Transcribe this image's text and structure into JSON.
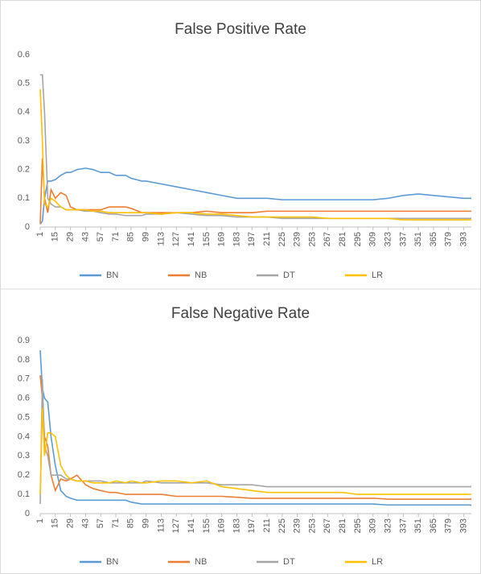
{
  "chart_data": [
    {
      "type": "line",
      "title": "False Positive Rate",
      "x": [
        1,
        3,
        5,
        8,
        11,
        15,
        20,
        25,
        29,
        35,
        43,
        50,
        57,
        65,
        71,
        80,
        85,
        95,
        99,
        113,
        127,
        141,
        155,
        169,
        183,
        197,
        211,
        225,
        239,
        253,
        267,
        281,
        295,
        309,
        323,
        337,
        351,
        365,
        379,
        393,
        400
      ],
      "xlim": [
        1,
        400
      ],
      "xticks": [
        1,
        15,
        29,
        43,
        57,
        71,
        85,
        99,
        113,
        127,
        141,
        155,
        169,
        183,
        197,
        211,
        225,
        239,
        253,
        267,
        281,
        295,
        309,
        323,
        337,
        351,
        365,
        379,
        393
      ],
      "ylim": [
        0,
        0.6
      ],
      "yticks": [
        0,
        0.1,
        0.2,
        0.3,
        0.4,
        0.5,
        0.6
      ],
      "grid": false,
      "legend": "bottom",
      "series": [
        {
          "name": "BN",
          "color": "#5b9bd5",
          "values": [
            0.01,
            0.02,
            0.1,
            0.16,
            0.16,
            0.165,
            0.18,
            0.19,
            0.19,
            0.2,
            0.205,
            0.2,
            0.19,
            0.19,
            0.18,
            0.18,
            0.17,
            0.16,
            0.16,
            0.15,
            0.14,
            0.13,
            0.12,
            0.11,
            0.1,
            0.1,
            0.1,
            0.095,
            0.095,
            0.095,
            0.095,
            0.095,
            0.095,
            0.095,
            0.1,
            0.11,
            0.115,
            0.11,
            0.105,
            0.1,
            0.1
          ]
        },
        {
          "name": "NB",
          "color": "#ed7d31",
          "values": [
            0.01,
            0.24,
            0.1,
            0.05,
            0.13,
            0.1,
            0.12,
            0.11,
            0.07,
            0.06,
            0.06,
            0.06,
            0.06,
            0.07,
            0.07,
            0.07,
            0.065,
            0.05,
            0.05,
            0.05,
            0.05,
            0.05,
            0.055,
            0.05,
            0.05,
            0.05,
            0.055,
            0.055,
            0.055,
            0.055,
            0.055,
            0.055,
            0.055,
            0.055,
            0.055,
            0.055,
            0.055,
            0.055,
            0.055,
            0.055,
            0.055
          ]
        },
        {
          "name": "DT",
          "color": "#a5a5a5",
          "values": [
            0.53,
            0.53,
            0.4,
            0.1,
            0.08,
            0.07,
            0.07,
            0.06,
            0.06,
            0.06,
            0.055,
            0.055,
            0.05,
            0.045,
            0.045,
            0.04,
            0.04,
            0.04,
            0.045,
            0.045,
            0.05,
            0.045,
            0.04,
            0.04,
            0.035,
            0.035,
            0.035,
            0.03,
            0.03,
            0.03,
            0.03,
            0.03,
            0.03,
            0.03,
            0.03,
            0.03,
            0.03,
            0.03,
            0.03,
            0.03,
            0.03
          ]
        },
        {
          "name": "LR",
          "color": "#ffc000",
          "values": [
            0.48,
            0.3,
            0.08,
            0.07,
            0.1,
            0.09,
            0.07,
            0.06,
            0.06,
            0.06,
            0.06,
            0.055,
            0.055,
            0.05,
            0.05,
            0.05,
            0.05,
            0.05,
            0.05,
            0.045,
            0.05,
            0.05,
            0.045,
            0.045,
            0.04,
            0.035,
            0.035,
            0.035,
            0.035,
            0.035,
            0.03,
            0.03,
            0.03,
            0.03,
            0.03,
            0.025,
            0.025,
            0.025,
            0.025,
            0.025,
            0.025
          ]
        }
      ]
    },
    {
      "type": "line",
      "title": "False Negative Rate",
      "x": [
        1,
        3,
        5,
        8,
        11,
        15,
        20,
        25,
        29,
        35,
        43,
        50,
        57,
        65,
        71,
        80,
        85,
        95,
        99,
        113,
        127,
        141,
        155,
        169,
        183,
        197,
        211,
        225,
        239,
        253,
        267,
        281,
        295,
        309,
        323,
        337,
        351,
        365,
        379,
        393,
        400
      ],
      "xlim": [
        1,
        400
      ],
      "xticks": [
        1,
        15,
        29,
        43,
        57,
        71,
        85,
        99,
        113,
        127,
        141,
        155,
        169,
        183,
        197,
        211,
        225,
        239,
        253,
        267,
        281,
        295,
        309,
        323,
        337,
        351,
        365,
        379,
        393
      ],
      "ylim": [
        0,
        0.9
      ],
      "yticks": [
        0,
        0.1,
        0.2,
        0.3,
        0.4,
        0.5,
        0.6,
        0.7,
        0.8,
        0.9
      ],
      "grid": false,
      "legend": "bottom",
      "series": [
        {
          "name": "BN",
          "color": "#5b9bd5",
          "values": [
            0.85,
            0.65,
            0.6,
            0.58,
            0.4,
            0.25,
            0.12,
            0.09,
            0.08,
            0.07,
            0.07,
            0.07,
            0.07,
            0.07,
            0.07,
            0.07,
            0.06,
            0.05,
            0.05,
            0.05,
            0.05,
            0.05,
            0.05,
            0.05,
            0.05,
            0.05,
            0.05,
            0.05,
            0.05,
            0.05,
            0.05,
            0.05,
            0.05,
            0.05,
            0.045,
            0.045,
            0.045,
            0.045,
            0.045,
            0.045,
            0.045
          ]
        },
        {
          "name": "NB",
          "color": "#ed7d31",
          "values": [
            0.72,
            0.6,
            0.4,
            0.35,
            0.2,
            0.12,
            0.18,
            0.17,
            0.18,
            0.2,
            0.15,
            0.13,
            0.12,
            0.11,
            0.11,
            0.1,
            0.1,
            0.1,
            0.1,
            0.1,
            0.09,
            0.09,
            0.09,
            0.09,
            0.085,
            0.08,
            0.08,
            0.08,
            0.08,
            0.08,
            0.08,
            0.08,
            0.08,
            0.08,
            0.075,
            0.075,
            0.075,
            0.075,
            0.075,
            0.075,
            0.075
          ]
        },
        {
          "name": "DT",
          "color": "#a5a5a5",
          "values": [
            0.05,
            0.7,
            0.35,
            0.3,
            0.2,
            0.2,
            0.2,
            0.18,
            0.18,
            0.17,
            0.17,
            0.17,
            0.17,
            0.16,
            0.16,
            0.16,
            0.16,
            0.16,
            0.17,
            0.16,
            0.16,
            0.16,
            0.16,
            0.15,
            0.15,
            0.15,
            0.14,
            0.14,
            0.14,
            0.14,
            0.14,
            0.14,
            0.14,
            0.14,
            0.14,
            0.14,
            0.14,
            0.14,
            0.14,
            0.14,
            0.14
          ]
        },
        {
          "name": "LR",
          "color": "#ffc000",
          "values": [
            0.1,
            0.55,
            0.3,
            0.42,
            0.42,
            0.4,
            0.25,
            0.2,
            0.18,
            0.17,
            0.17,
            0.16,
            0.16,
            0.16,
            0.17,
            0.16,
            0.17,
            0.16,
            0.16,
            0.17,
            0.17,
            0.16,
            0.17,
            0.14,
            0.13,
            0.12,
            0.11,
            0.11,
            0.11,
            0.11,
            0.11,
            0.11,
            0.1,
            0.1,
            0.1,
            0.1,
            0.1,
            0.1,
            0.1,
            0.1,
            0.1
          ]
        }
      ]
    }
  ]
}
